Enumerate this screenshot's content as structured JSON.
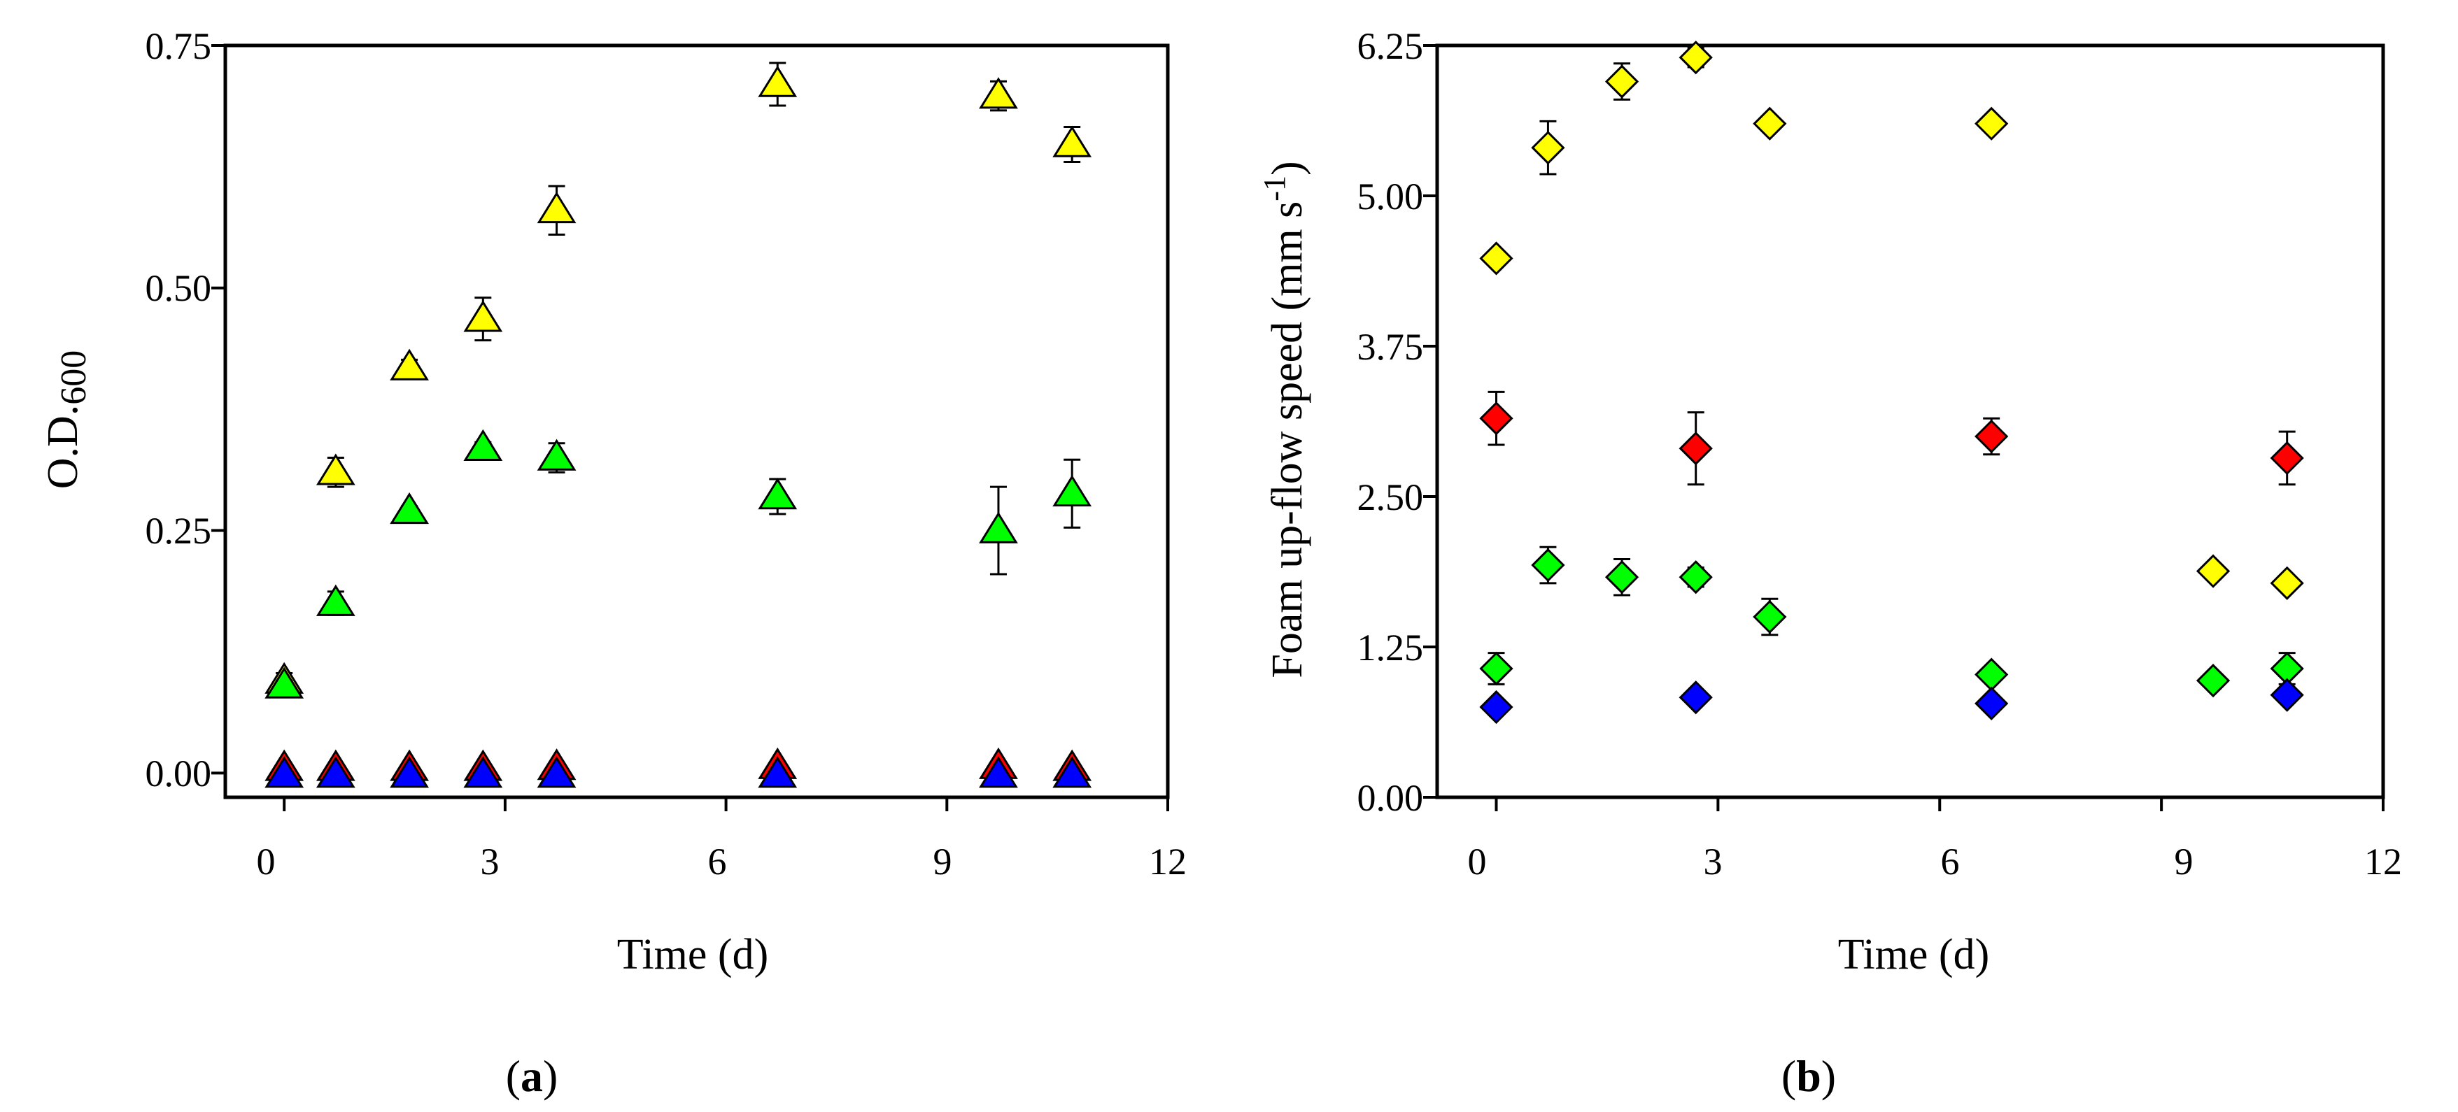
{
  "figure": {
    "panels": [
      {
        "id": "a",
        "label_open": "(",
        "label_letter": "a",
        "label_close": ")"
      },
      {
        "id": "b",
        "label_open": "(",
        "label_letter": "b",
        "label_close": ")"
      }
    ]
  },
  "colors": {
    "yellow": "#ffff00",
    "green": "#00ff00",
    "red": "#ff0000",
    "blue": "#0000ff",
    "axis": "#000000"
  },
  "chart_data": [
    {
      "panel": "a",
      "type": "scatter",
      "marker": "triangle",
      "title": "",
      "xlabel": "Time (d)",
      "ylabel": "O.D.600",
      "ylabel_parts": {
        "main": "O.D.",
        "sub": "600"
      },
      "xlim": [
        -0.8,
        12
      ],
      "ylim": [
        -0.025,
        0.75
      ],
      "xticks": [
        0,
        3,
        6,
        9,
        12
      ],
      "xtick_labels": [
        "0",
        "3",
        "6",
        "9",
        "12"
      ],
      "yticks": [
        0,
        0.25,
        0.5,
        0.75
      ],
      "ytick_labels": [
        "0.00",
        "0.25",
        "0.50",
        "0.75"
      ],
      "series": [
        {
          "name": "yellow",
          "color": "#ffff00",
          "x": [
            0,
            0.7,
            1.7,
            2.7,
            3.7,
            6.7,
            9.7,
            10.7
          ],
          "y": [
            0.095,
            0.31,
            0.418,
            0.468,
            0.58,
            0.71,
            0.698,
            0.648
          ],
          "err": [
            0.008,
            0.015,
            0.008,
            0.022,
            0.025,
            0.022,
            0.015,
            0.018
          ]
        },
        {
          "name": "green",
          "color": "#00ff00",
          "x": [
            0,
            0.7,
            1.7,
            2.7,
            3.7,
            6.7,
            9.7,
            10.7
          ],
          "y": [
            0.09,
            0.175,
            0.27,
            0.335,
            0.325,
            0.285,
            0.25,
            0.288
          ],
          "err": [
            0.005,
            0.012,
            0.005,
            0.006,
            0.015,
            0.018,
            0.045,
            0.035
          ]
        },
        {
          "name": "red",
          "color": "#ff0000",
          "x": [
            0,
            0.7,
            1.7,
            2.7,
            3.7,
            6.7,
            9.7,
            10.7
          ],
          "y": [
            0.005,
            0.005,
            0.005,
            0.005,
            0.006,
            0.007,
            0.007,
            0.005
          ],
          "err": [
            0,
            0,
            0,
            0,
            0,
            0,
            0,
            0
          ]
        },
        {
          "name": "blue",
          "color": "#0000ff",
          "x": [
            0,
            0.7,
            1.7,
            2.7,
            3.7,
            6.7,
            9.7,
            10.7
          ],
          "y": [
            -0.002,
            -0.002,
            -0.002,
            -0.002,
            -0.002,
            -0.002,
            -0.002,
            -0.002
          ],
          "err": [
            0,
            0,
            0,
            0,
            0,
            0,
            0,
            0
          ]
        }
      ]
    },
    {
      "panel": "b",
      "type": "scatter",
      "marker": "diamond",
      "title": "",
      "xlabel": "Time (d)",
      "ylabel": "Foam up-flow speed (mm s-1)",
      "ylabel_parts": {
        "main": "Foam up-flow speed (mm s",
        "sup": "-1",
        "close": ")"
      },
      "xlim": [
        -0.8,
        12
      ],
      "ylim": [
        0,
        6.25
      ],
      "xticks": [
        0,
        3,
        6,
        9,
        12
      ],
      "xtick_labels": [
        "0",
        "3",
        "6",
        "9",
        "12"
      ],
      "yticks": [
        0,
        1.25,
        2.5,
        3.75,
        5,
        6.25
      ],
      "ytick_labels": [
        "0.00",
        "1.25",
        "2.50",
        "3.75",
        "5.00",
        "6.25"
      ],
      "series": [
        {
          "name": "yellow",
          "color": "#ffff00",
          "x": [
            0,
            0.7,
            1.7,
            2.7,
            3.7,
            6.7,
            9.7,
            10.7
          ],
          "y": [
            4.48,
            5.4,
            5.95,
            6.15,
            5.6,
            5.6,
            1.88,
            1.78
          ],
          "err": [
            0.05,
            0.22,
            0.15,
            0.08,
            0.05,
            0.05,
            0.05,
            0.05
          ]
        },
        {
          "name": "red",
          "color": "#ff0000",
          "x": [
            0,
            2.7,
            6.7,
            10.7
          ],
          "y": [
            3.15,
            2.9,
            3.0,
            2.82
          ],
          "err": [
            0.22,
            0.3,
            0.15,
            0.22
          ]
        },
        {
          "name": "green",
          "color": "#00ff00",
          "x": [
            0,
            0.7,
            1.7,
            2.7,
            3.7,
            6.7,
            9.7,
            10.7
          ],
          "y": [
            1.07,
            1.93,
            1.83,
            1.83,
            1.5,
            1.02,
            0.97,
            1.07
          ],
          "err": [
            0.13,
            0.15,
            0.15,
            0.08,
            0.15,
            0.05,
            0.05,
            0.13
          ]
        },
        {
          "name": "blue",
          "color": "#0000ff",
          "x": [
            0,
            2.7,
            6.7,
            10.7
          ],
          "y": [
            0.75,
            0.83,
            0.78,
            0.85
          ],
          "err": [
            0.04,
            0.04,
            0.04,
            0.04
          ]
        }
      ]
    }
  ]
}
